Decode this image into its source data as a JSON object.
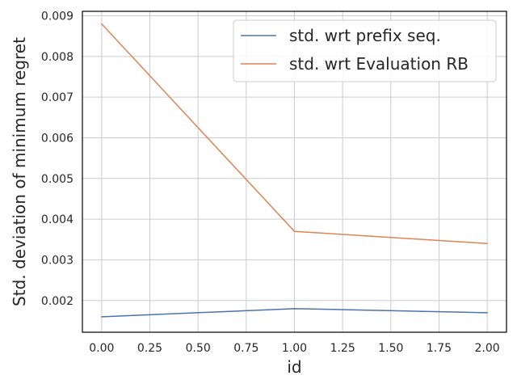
{
  "chart_data": {
    "type": "line",
    "x": [
      0.0,
      1.0,
      2.0
    ],
    "series": [
      {
        "name": "std. wrt prefix seq.",
        "values": [
          0.0016,
          0.0018,
          0.0017
        ],
        "color": "#4c72b0"
      },
      {
        "name": "std. wrt Evaluation RB",
        "values": [
          0.0088,
          0.0037,
          0.0034
        ],
        "color": "#dd8452"
      }
    ],
    "xlabel": "id",
    "ylabel": "Std. deviation of minimum regret",
    "xlim": [
      -0.1,
      2.1
    ],
    "ylim": [
      0.00122,
      0.00911
    ],
    "xticks": [
      0.0,
      0.25,
      0.5,
      0.75,
      1.0,
      1.25,
      1.5,
      1.75,
      2.0
    ],
    "xtick_labels": [
      "0.00",
      "0.25",
      "0.50",
      "0.75",
      "1.00",
      "1.25",
      "1.50",
      "1.75",
      "2.00"
    ],
    "yticks": [
      0.002,
      0.003,
      0.004,
      0.005,
      0.006,
      0.007,
      0.008,
      0.009
    ],
    "ytick_labels": [
      "0.002",
      "0.003",
      "0.004",
      "0.005",
      "0.006",
      "0.007",
      "0.008",
      "0.009"
    ],
    "grid": true,
    "legend_position": "top-right"
  }
}
